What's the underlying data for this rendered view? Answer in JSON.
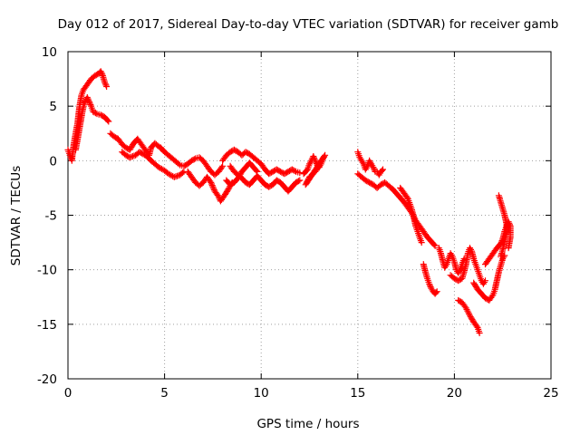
{
  "chart_data": {
    "type": "scatter",
    "title": "Day 012 of 2017, Sidereal Day-to-day VTEC variation (SDTVAR) for receiver gamb",
    "xlabel": "GPS time / hours",
    "ylabel": "SDTVAR / TECUs",
    "xlim": [
      0,
      25
    ],
    "ylim": [
      -20,
      10
    ],
    "xticks": [
      0,
      5,
      10,
      15,
      20,
      25
    ],
    "yticks": [
      -20,
      -15,
      -10,
      -5,
      0,
      5,
      10
    ],
    "grid": true,
    "marker": "+",
    "series": [
      {
        "name": "SDTVAR",
        "color": "#ff0000",
        "segments": [
          [
            [
              0.0,
              1.0
            ],
            [
              0.1,
              0.5
            ],
            [
              0.2,
              0.0
            ],
            [
              0.3,
              1.5
            ],
            [
              0.4,
              2.5
            ],
            [
              0.5,
              3.5
            ],
            [
              0.6,
              5.0
            ],
            [
              0.7,
              6.0
            ],
            [
              0.8,
              6.5
            ],
            [
              1.0,
              7.0
            ],
            [
              1.2,
              7.5
            ],
            [
              1.4,
              7.8
            ],
            [
              1.6,
              8.0
            ],
            [
              1.7,
              8.2
            ],
            [
              1.8,
              7.8
            ],
            [
              1.9,
              7.2
            ],
            [
              2.0,
              6.8
            ]
          ],
          [
            [
              0.4,
              1.0
            ],
            [
              0.5,
              2.0
            ],
            [
              0.6,
              3.0
            ],
            [
              0.7,
              4.0
            ],
            [
              0.8,
              5.0
            ],
            [
              0.9,
              5.5
            ],
            [
              1.0,
              5.8
            ],
            [
              1.2,
              5.0
            ],
            [
              1.3,
              4.5
            ],
            [
              1.5,
              4.3
            ],
            [
              1.7,
              4.2
            ],
            [
              1.9,
              4.0
            ],
            [
              2.1,
              3.6
            ]
          ],
          [
            [
              2.2,
              2.5
            ],
            [
              2.4,
              2.2
            ],
            [
              2.6,
              2.0
            ],
            [
              2.8,
              1.5
            ],
            [
              3.0,
              1.2
            ],
            [
              3.2,
              1.0
            ],
            [
              3.4,
              1.6
            ],
            [
              3.6,
              2.0
            ],
            [
              3.8,
              1.5
            ],
            [
              4.0,
              1.0
            ],
            [
              4.2,
              0.5
            ],
            [
              4.3,
              1.2
            ],
            [
              4.5,
              1.6
            ],
            [
              4.7,
              1.3
            ],
            [
              4.9,
              1.0
            ]
          ],
          [
            [
              2.8,
              0.8
            ],
            [
              3.0,
              0.5
            ],
            [
              3.2,
              0.3
            ],
            [
              3.5,
              0.5
            ],
            [
              3.7,
              0.8
            ],
            [
              3.9,
              0.6
            ],
            [
              4.1,
              0.4
            ],
            [
              4.3,
              0.0
            ],
            [
              4.5,
              -0.3
            ],
            [
              4.7,
              -0.6
            ],
            [
              5.0,
              -0.9
            ],
            [
              5.2,
              -1.2
            ],
            [
              5.5,
              -1.5
            ],
            [
              5.8,
              -1.3
            ],
            [
              6.0,
              -1.0
            ]
          ],
          [
            [
              4.8,
              1.2
            ],
            [
              5.0,
              0.8
            ],
            [
              5.2,
              0.5
            ],
            [
              5.4,
              0.2
            ],
            [
              5.6,
              -0.1
            ],
            [
              5.8,
              -0.4
            ],
            [
              6.0,
              -0.5
            ],
            [
              6.2,
              -0.3
            ],
            [
              6.4,
              0.0
            ],
            [
              6.6,
              0.2
            ],
            [
              6.8,
              0.3
            ],
            [
              7.0,
              0.0
            ],
            [
              7.2,
              -0.5
            ],
            [
              7.4,
              -1.0
            ],
            [
              7.6,
              -1.3
            ],
            [
              7.8,
              -1.0
            ],
            [
              8.0,
              -0.5
            ]
          ],
          [
            [
              6.2,
              -1.0
            ],
            [
              6.4,
              -1.5
            ],
            [
              6.6,
              -2.0
            ],
            [
              6.8,
              -2.3
            ],
            [
              7.0,
              -2.0
            ],
            [
              7.2,
              -1.5
            ],
            [
              7.4,
              -2.0
            ],
            [
              7.6,
              -2.8
            ],
            [
              7.8,
              -3.3
            ],
            [
              7.9,
              -3.7
            ],
            [
              8.1,
              -3.2
            ],
            [
              8.3,
              -2.6
            ],
            [
              8.5,
              -2.0
            ]
          ],
          [
            [
              8.0,
              0.0
            ],
            [
              8.2,
              0.5
            ],
            [
              8.4,
              0.8
            ],
            [
              8.6,
              1.0
            ],
            [
              8.8,
              0.8
            ],
            [
              9.0,
              0.5
            ],
            [
              9.2,
              0.8
            ],
            [
              9.4,
              0.6
            ],
            [
              9.6,
              0.3
            ],
            [
              9.8,
              0.0
            ],
            [
              10.0,
              -0.3
            ],
            [
              10.2,
              -0.8
            ],
            [
              10.4,
              -1.2
            ],
            [
              10.6,
              -1.0
            ],
            [
              10.8,
              -0.8
            ],
            [
              11.0,
              -1.0
            ],
            [
              11.2,
              -1.2
            ],
            [
              11.4,
              -1.0
            ],
            [
              11.6,
              -0.8
            ],
            [
              11.8,
              -1.0
            ],
            [
              12.0,
              -1.1
            ]
          ],
          [
            [
              8.4,
              -0.5
            ],
            [
              8.6,
              -1.0
            ],
            [
              8.8,
              -1.3
            ],
            [
              9.0,
              -1.6
            ],
            [
              9.2,
              -2.0
            ],
            [
              9.4,
              -2.2
            ],
            [
              9.6,
              -1.8
            ],
            [
              9.8,
              -1.4
            ],
            [
              10.0,
              -1.8
            ],
            [
              10.2,
              -2.2
            ],
            [
              10.4,
              -2.4
            ],
            [
              10.6,
              -2.2
            ],
            [
              10.8,
              -1.8
            ],
            [
              11.0,
              -2.0
            ],
            [
              11.2,
              -2.4
            ],
            [
              11.4,
              -2.8
            ],
            [
              11.6,
              -2.4
            ],
            [
              11.8,
              -2.0
            ],
            [
              12.0,
              -1.8
            ]
          ],
          [
            [
              8.2,
              -1.8
            ],
            [
              8.4,
              -2.2
            ],
            [
              8.6,
              -2.0
            ],
            [
              8.8,
              -1.6
            ],
            [
              9.0,
              -1.0
            ],
            [
              9.2,
              -0.6
            ],
            [
              9.4,
              -0.2
            ],
            [
              9.6,
              -0.6
            ],
            [
              9.8,
              -1.0
            ]
          ],
          [
            [
              12.2,
              -1.2
            ],
            [
              12.4,
              -0.8
            ],
            [
              12.5,
              -0.3
            ],
            [
              12.6,
              0.0
            ],
            [
              12.7,
              0.4
            ],
            [
              12.8,
              0.0
            ],
            [
              12.9,
              -0.4
            ],
            [
              13.0,
              -0.6
            ],
            [
              13.1,
              -0.3
            ],
            [
              13.2,
              0.2
            ],
            [
              13.3,
              0.5
            ],
            [
              12.3,
              -2.2
            ],
            [
              12.5,
              -1.5
            ],
            [
              12.8,
              -1.0
            ],
            [
              13.0,
              -0.5
            ]
          ],
          [
            [
              15.0,
              0.8
            ],
            [
              15.1,
              0.3
            ],
            [
              15.2,
              0.0
            ],
            [
              15.3,
              -0.3
            ],
            [
              15.4,
              -0.8
            ],
            [
              15.5,
              -0.5
            ],
            [
              15.6,
              0.0
            ],
            [
              15.7,
              -0.3
            ],
            [
              15.8,
              -0.6
            ],
            [
              15.9,
              -1.0
            ],
            [
              16.0,
              -1.0
            ],
            [
              16.1,
              -1.3
            ],
            [
              16.2,
              -1.0
            ],
            [
              16.3,
              -0.8
            ]
          ],
          [
            [
              15.0,
              -1.2
            ],
            [
              15.2,
              -1.5
            ],
            [
              15.4,
              -1.8
            ],
            [
              15.6,
              -2.0
            ],
            [
              15.8,
              -2.2
            ],
            [
              16.0,
              -2.5
            ],
            [
              16.2,
              -2.2
            ],
            [
              16.4,
              -2.0
            ],
            [
              16.6,
              -2.3
            ],
            [
              16.8,
              -2.6
            ],
            [
              17.0,
              -3.0
            ],
            [
              17.2,
              -3.4
            ],
            [
              17.4,
              -3.8
            ],
            [
              17.6,
              -4.3
            ],
            [
              17.8,
              -4.8
            ],
            [
              18.0,
              -5.5
            ],
            [
              18.2,
              -6.0
            ],
            [
              18.4,
              -6.5
            ],
            [
              18.6,
              -7.0
            ],
            [
              18.8,
              -7.4
            ],
            [
              19.0,
              -7.8
            ]
          ],
          [
            [
              17.2,
              -2.5
            ],
            [
              17.4,
              -3.0
            ],
            [
              17.6,
              -3.5
            ],
            [
              17.7,
              -4.0
            ],
            [
              17.8,
              -4.5
            ],
            [
              17.9,
              -5.2
            ],
            [
              18.0,
              -6.0
            ],
            [
              18.1,
              -6.5
            ],
            [
              18.2,
              -7.0
            ],
            [
              18.3,
              -7.5
            ]
          ],
          [
            [
              18.4,
              -9.5
            ],
            [
              18.5,
              -10.2
            ],
            [
              18.6,
              -10.8
            ],
            [
              18.7,
              -11.3
            ],
            [
              18.8,
              -11.7
            ],
            [
              18.9,
              -12.0
            ],
            [
              19.0,
              -12.2
            ],
            [
              19.1,
              -12.0
            ]
          ],
          [
            [
              19.2,
              -8.0
            ],
            [
              19.3,
              -8.5
            ],
            [
              19.4,
              -9.2
            ],
            [
              19.5,
              -9.8
            ],
            [
              19.6,
              -9.5
            ],
            [
              19.7,
              -9.0
            ],
            [
              19.8,
              -8.5
            ],
            [
              19.9,
              -8.8
            ],
            [
              20.0,
              -9.3
            ],
            [
              20.1,
              -10.0
            ],
            [
              20.2,
              -10.3
            ],
            [
              20.3,
              -10.0
            ],
            [
              20.4,
              -9.5
            ],
            [
              20.5,
              -9.0
            ]
          ],
          [
            [
              19.8,
              -10.5
            ],
            [
              20.0,
              -10.8
            ],
            [
              20.2,
              -11.0
            ],
            [
              20.4,
              -10.8
            ],
            [
              20.5,
              -10.2
            ],
            [
              20.6,
              -9.5
            ],
            [
              20.7,
              -8.5
            ],
            [
              20.8,
              -8.0
            ],
            [
              20.9,
              -8.3
            ],
            [
              21.0,
              -9.0
            ],
            [
              21.1,
              -9.5
            ],
            [
              21.2,
              -10.0
            ],
            [
              21.3,
              -10.5
            ],
            [
              21.4,
              -11.0
            ],
            [
              21.5,
              -11.3
            ],
            [
              21.6,
              -11.0
            ]
          ],
          [
            [
              20.2,
              -12.8
            ],
            [
              20.4,
              -13.0
            ],
            [
              20.6,
              -13.5
            ],
            [
              20.8,
              -14.2
            ],
            [
              21.0,
              -14.8
            ],
            [
              21.2,
              -15.3
            ],
            [
              21.3,
              -15.8
            ]
          ],
          [
            [
              21.0,
              -11.2
            ],
            [
              21.2,
              -11.8
            ],
            [
              21.4,
              -12.2
            ],
            [
              21.6,
              -12.6
            ],
            [
              21.8,
              -12.8
            ],
            [
              22.0,
              -12.3
            ],
            [
              22.1,
              -11.8
            ],
            [
              22.2,
              -11.0
            ],
            [
              22.3,
              -10.2
            ],
            [
              22.4,
              -9.6
            ],
            [
              22.5,
              -9.0
            ],
            [
              22.6,
              -8.7
            ]
          ],
          [
            [
              21.6,
              -9.5
            ],
            [
              21.8,
              -9.0
            ],
            [
              22.0,
              -8.5
            ],
            [
              22.2,
              -8.0
            ],
            [
              22.4,
              -7.6
            ],
            [
              22.5,
              -7.2
            ],
            [
              22.6,
              -6.5
            ],
            [
              22.7,
              -6.0
            ],
            [
              22.8,
              -5.6
            ],
            [
              22.9,
              -6.0
            ],
            [
              22.9,
              -7.0
            ],
            [
              22.8,
              -8.0
            ]
          ],
          [
            [
              22.3,
              -3.2
            ],
            [
              22.4,
              -3.8
            ],
            [
              22.5,
              -4.4
            ],
            [
              22.6,
              -5.0
            ],
            [
              22.7,
              -5.8
            ],
            [
              22.7,
              -6.6
            ],
            [
              22.6,
              -7.4
            ],
            [
              22.5,
              -8.2
            ],
            [
              22.4,
              -8.8
            ]
          ]
        ]
      }
    ]
  }
}
